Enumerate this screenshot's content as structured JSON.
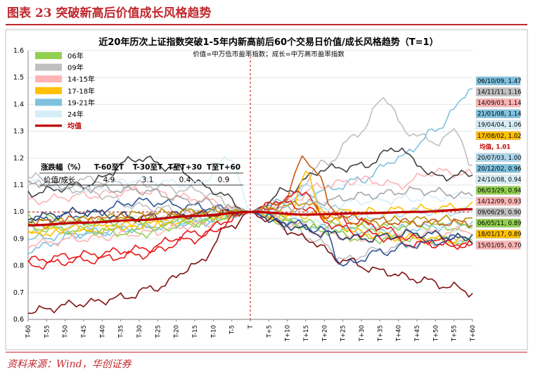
{
  "figure": {
    "title": "图表 23    突破新高后价值成长风格趋势",
    "source": "资料来源：Wind，华创证券"
  },
  "colors": {
    "brand_red": "#c0282d",
    "mean": "#c00000",
    "s06": "#92d050",
    "s09": "#bfbfbf",
    "s1415": "#ffb3b3",
    "s1718": "#ffc000",
    "s1921": "#7ec2e0",
    "s24": "#d6eef8"
  },
  "chart_data": {
    "type": "line",
    "title": "近20年历次上证指数突破1-5年内新高前后60个交易日价值/成长风格趋势（T=1）",
    "subtitle": "价值=中万低市盈率指数；成长=中万高市盈率指数",
    "xlabel": "",
    "ylabel": "",
    "x_range": [
      -60,
      60
    ],
    "ylim": [
      0.6,
      1.6
    ],
    "yticks": [
      "0.6",
      "0.7",
      "0.8",
      "0.9",
      "1.0",
      "1.1",
      "1.2",
      "1.3",
      "1.4",
      "1.5",
      "1.6"
    ],
    "xticks": [
      "T-60",
      "T-55",
      "T-50",
      "T-45",
      "T-40",
      "T-35",
      "T-30",
      "T-25",
      "T-20",
      "T-15",
      "T-10",
      "T-5",
      "T",
      "T+5",
      "T+10",
      "T+15",
      "T+20",
      "T+25",
      "T+30",
      "T+35",
      "T+40",
      "T+45",
      "T+50",
      "T+55",
      "T+60"
    ],
    "reference_line": 1.0,
    "legend": [
      {
        "label": "06年",
        "color": "#92d050"
      },
      {
        "label": "09年",
        "color": "#bfbfbf"
      },
      {
        "label": "14-15年",
        "color": "#ffb3b3"
      },
      {
        "label": "17-18年",
        "color": "#ffc000"
      },
      {
        "label": "19-21年",
        "color": "#7ec2e0"
      },
      {
        "label": "24年",
        "color": "#d6eef8"
      },
      {
        "label": "均值",
        "color": "#c00000"
      }
    ],
    "table": {
      "header": [
        "涨跌幅（%）",
        "T-60至T",
        "T-30至T",
        "T至T+30",
        "T至T+60"
      ],
      "row_label": "价值/成长",
      "values": [
        "4.9",
        "3.1",
        "0.4",
        "0.9"
      ]
    },
    "series": [
      {
        "name": "06/10/09",
        "end_label": "06/10/09, 1.47",
        "color": "#7ec2e0",
        "anchors": [
          [
            -60,
            0.86
          ],
          [
            -45,
            0.92
          ],
          [
            -30,
            0.94
          ],
          [
            -15,
            0.97
          ],
          [
            0,
            1.0
          ],
          [
            10,
            1.04
          ],
          [
            20,
            1.08
          ],
          [
            30,
            1.12
          ],
          [
            40,
            1.2
          ],
          [
            50,
            1.3
          ],
          [
            55,
            1.38
          ],
          [
            60,
            1.47
          ]
        ]
      },
      {
        "name": "14/11/11",
        "end_label": "14/11/11, 1.16",
        "color": "#bfbfbf",
        "anchors": [
          [
            -60,
            1.1
          ],
          [
            -45,
            1.12
          ],
          [
            -30,
            1.1
          ],
          [
            -15,
            1.08
          ],
          [
            0,
            1.0
          ],
          [
            10,
            1.05
          ],
          [
            20,
            1.18
          ],
          [
            30,
            1.3
          ],
          [
            36,
            1.43
          ],
          [
            42,
            1.3
          ],
          [
            50,
            1.26
          ],
          [
            56,
            1.3
          ],
          [
            60,
            1.16
          ]
        ]
      },
      {
        "name": "14/09/03",
        "end_label": "14/09/03, 1.14",
        "color": "#ffb3b3",
        "anchors": [
          [
            -60,
            1.04
          ],
          [
            -45,
            1.06
          ],
          [
            -30,
            1.08
          ],
          [
            -15,
            1.05
          ],
          [
            0,
            1.0
          ],
          [
            10,
            1.04
          ],
          [
            20,
            1.1
          ],
          [
            30,
            1.12
          ],
          [
            40,
            1.1
          ],
          [
            50,
            1.15
          ],
          [
            60,
            1.14
          ]
        ]
      },
      {
        "name": "21/01/08",
        "end_label": "21/01/08, 1.14",
        "color": "#404040",
        "anchors": [
          [
            -60,
            1.07
          ],
          [
            -45,
            1.1
          ],
          [
            -30,
            1.2
          ],
          [
            -20,
            1.16
          ],
          [
            -10,
            1.08
          ],
          [
            0,
            1.0
          ],
          [
            10,
            1.08
          ],
          [
            20,
            1.16
          ],
          [
            30,
            1.17
          ],
          [
            40,
            1.24
          ],
          [
            45,
            1.18
          ],
          [
            50,
            1.13
          ],
          [
            60,
            1.14
          ]
        ]
      },
      {
        "name": "19/04/04",
        "end_label": "19/04/04, 1.06",
        "color": "#d6eef8",
        "anchors": [
          [
            -60,
            1.12
          ],
          [
            -45,
            1.08
          ],
          [
            -30,
            1.12
          ],
          [
            -15,
            1.1
          ],
          [
            -5,
            1.2
          ],
          [
            0,
            1.0
          ],
          [
            10,
            1.0
          ],
          [
            20,
            1.02
          ],
          [
            30,
            1.04
          ],
          [
            45,
            1.05
          ],
          [
            60,
            1.06
          ]
        ]
      },
      {
        "name": "17/08/02",
        "end_label": "17/08/02, 1.02",
        "color": "#ffc000",
        "anchors": [
          [
            -60,
            0.92
          ],
          [
            -45,
            0.93
          ],
          [
            -30,
            0.95
          ],
          [
            -15,
            0.97
          ],
          [
            0,
            1.0
          ],
          [
            10,
            0.98
          ],
          [
            20,
            1.0
          ],
          [
            30,
            1.0
          ],
          [
            45,
            1.01
          ],
          [
            60,
            1.02
          ]
        ]
      },
      {
        "name": "20/07/03",
        "end_label": "20/07/03, 1.00",
        "color": "#b0d8ee",
        "anchors": [
          [
            -60,
            0.94
          ],
          [
            -45,
            0.95
          ],
          [
            -30,
            0.96
          ],
          [
            -15,
            0.98
          ],
          [
            0,
            1.0
          ],
          [
            10,
            1.03
          ],
          [
            15,
            1.1
          ],
          [
            20,
            1.02
          ],
          [
            30,
            0.98
          ],
          [
            45,
            1.0
          ],
          [
            60,
            1.0
          ]
        ]
      },
      {
        "name": "均值",
        "end_label": "均值, 1.01",
        "color": "#c00000",
        "anchors": [
          [
            -60,
            0.95
          ],
          [
            -45,
            0.96
          ],
          [
            -30,
            0.97
          ],
          [
            -15,
            0.985
          ],
          [
            0,
            1.0
          ],
          [
            15,
            0.99
          ],
          [
            30,
            0.995
          ],
          [
            45,
            1.0
          ],
          [
            60,
            1.01
          ]
        ]
      },
      {
        "name": "20/12/02",
        "end_label": "20/12/02, 0.96",
        "color": "#7ec2e0",
        "anchors": [
          [
            -60,
            0.9
          ],
          [
            -45,
            0.92
          ],
          [
            -30,
            0.94
          ],
          [
            -15,
            0.96
          ],
          [
            0,
            1.0
          ],
          [
            10,
            0.97
          ],
          [
            20,
            0.94
          ],
          [
            30,
            0.93
          ],
          [
            45,
            0.94
          ],
          [
            60,
            0.96
          ]
        ]
      },
      {
        "name": "24/10/08",
        "end_label": "24/10/08, 0.94",
        "color": "#d6eef8",
        "anchors": [
          [
            -60,
            0.96
          ],
          [
            -45,
            0.95
          ],
          [
            -30,
            0.97
          ],
          [
            -15,
            0.98
          ],
          [
            0,
            1.0
          ],
          [
            10,
            0.98
          ],
          [
            20,
            0.95
          ],
          [
            30,
            0.94
          ],
          [
            45,
            0.93
          ],
          [
            60,
            0.94
          ]
        ]
      },
      {
        "name": "06/03/29",
        "end_label": "06/03/29, 0.94",
        "color": "#92d050",
        "anchors": [
          [
            -60,
            0.98
          ],
          [
            -45,
            0.96
          ],
          [
            -30,
            0.97
          ],
          [
            -15,
            0.96
          ],
          [
            0,
            1.0
          ],
          [
            10,
            0.97
          ],
          [
            20,
            0.95
          ],
          [
            30,
            0.94
          ],
          [
            45,
            0.95
          ],
          [
            60,
            0.94
          ]
        ]
      },
      {
        "name": "14/12/09",
        "end_label": "14/12/09, 0.93",
        "color": "#ffb3b3",
        "anchors": [
          [
            -60,
            0.88
          ],
          [
            -45,
            0.9
          ],
          [
            -30,
            0.92
          ],
          [
            -15,
            0.95
          ],
          [
            0,
            1.0
          ],
          [
            10,
            0.96
          ],
          [
            20,
            0.92
          ],
          [
            30,
            0.9
          ],
          [
            45,
            0.92
          ],
          [
            60,
            0.93
          ]
        ]
      },
      {
        "name": "09/06/29",
        "end_label": "09/06/29, 0.90",
        "color": "#bfbfbf",
        "anchors": [
          [
            -60,
            1.13
          ],
          [
            -45,
            1.08
          ],
          [
            -30,
            1.02
          ],
          [
            -15,
            1.0
          ],
          [
            0,
            1.0
          ],
          [
            10,
            0.95
          ],
          [
            20,
            0.88
          ],
          [
            25,
            0.82
          ],
          [
            35,
            0.86
          ],
          [
            45,
            0.88
          ],
          [
            60,
            0.9
          ]
        ]
      },
      {
        "name": "06/05/11",
        "end_label": "06/05/11, 0.89",
        "color": "#92d050",
        "anchors": [
          [
            -60,
            0.94
          ],
          [
            -45,
            0.93
          ],
          [
            -30,
            0.92
          ],
          [
            -15,
            0.96
          ],
          [
            0,
            1.0
          ],
          [
            10,
            0.96
          ],
          [
            20,
            0.93
          ],
          [
            30,
            0.9
          ],
          [
            45,
            0.9
          ],
          [
            60,
            0.89
          ]
        ]
      },
      {
        "name": "18/01/17",
        "end_label": "18/01/17, 0.89",
        "color": "#ffc000",
        "anchors": [
          [
            -60,
            0.93
          ],
          [
            -45,
            0.94
          ],
          [
            -30,
            0.95
          ],
          [
            -15,
            0.98
          ],
          [
            0,
            1.0
          ],
          [
            10,
            0.98
          ],
          [
            15,
            1.14
          ],
          [
            20,
            0.98
          ],
          [
            30,
            0.92
          ],
          [
            45,
            0.9
          ],
          [
            60,
            0.89
          ]
        ]
      },
      {
        "name": "15/01/05",
        "end_label": "15/01/05, 0.70",
        "color": "#7f1010",
        "anchors": [
          [
            -60,
            0.63
          ],
          [
            -45,
            0.66
          ],
          [
            -35,
            0.68
          ],
          [
            -25,
            0.72
          ],
          [
            -15,
            0.8
          ],
          [
            -5,
            0.95
          ],
          [
            0,
            1.0
          ],
          [
            5,
            0.97
          ],
          [
            15,
            0.9
          ],
          [
            25,
            0.82
          ],
          [
            35,
            0.78
          ],
          [
            45,
            0.75
          ],
          [
            55,
            0.72
          ],
          [
            60,
            0.7
          ]
        ]
      },
      {
        "name": "red-a",
        "end_label": "",
        "color": "#e8191b",
        "anchors": [
          [
            -60,
            0.82
          ],
          [
            -45,
            0.84
          ],
          [
            -30,
            0.86
          ],
          [
            -15,
            0.92
          ],
          [
            0,
            1.0
          ],
          [
            10,
            1.05
          ],
          [
            15,
            1.08
          ],
          [
            20,
            0.96
          ],
          [
            30,
            0.92
          ],
          [
            45,
            0.88
          ],
          [
            60,
            0.88
          ]
        ]
      },
      {
        "name": "red-b",
        "end_label": "",
        "color": "#e8191b",
        "anchors": [
          [
            -60,
            0.8
          ],
          [
            -45,
            0.82
          ],
          [
            -30,
            0.84
          ],
          [
            -15,
            0.9
          ],
          [
            0,
            1.0
          ],
          [
            10,
            1.03
          ],
          [
            20,
            0.99
          ],
          [
            30,
            0.96
          ],
          [
            45,
            0.9
          ],
          [
            60,
            0.87
          ]
        ]
      },
      {
        "name": "navy-a",
        "end_label": "",
        "color": "#1f3a68",
        "anchors": [
          [
            -60,
            0.98
          ],
          [
            -45,
            1.0
          ],
          [
            -30,
            0.98
          ],
          [
            -15,
            0.99
          ],
          [
            0,
            1.0
          ],
          [
            10,
            0.95
          ],
          [
            20,
            0.92
          ],
          [
            30,
            0.9
          ],
          [
            45,
            0.92
          ],
          [
            60,
            0.9
          ]
        ]
      },
      {
        "name": "navy-b",
        "end_label": "",
        "color": "#2f5597",
        "anchors": [
          [
            -60,
            0.97
          ],
          [
            -45,
            0.99
          ],
          [
            -30,
            1.04
          ],
          [
            -15,
            1.02
          ],
          [
            0,
            1.0
          ],
          [
            10,
            0.96
          ],
          [
            20,
            0.93
          ],
          [
            25,
            0.8
          ],
          [
            35,
            0.85
          ],
          [
            45,
            0.88
          ],
          [
            60,
            0.91
          ]
        ]
      },
      {
        "name": "gold-a",
        "end_label": "",
        "color": "#bf8f00",
        "anchors": [
          [
            -60,
            0.95
          ],
          [
            -45,
            0.97
          ],
          [
            -30,
            0.99
          ],
          [
            -15,
            1.0
          ],
          [
            0,
            1.0
          ],
          [
            10,
            1.02
          ],
          [
            15,
            1.04
          ],
          [
            20,
            0.98
          ],
          [
            30,
            0.96
          ],
          [
            45,
            0.97
          ],
          [
            60,
            0.97
          ]
        ]
      },
      {
        "name": "gray-b",
        "end_label": "",
        "color": "#a6a6a6",
        "anchors": [
          [
            -60,
            1.11
          ],
          [
            -45,
            1.09
          ],
          [
            -30,
            1.08
          ],
          [
            -15,
            1.04
          ],
          [
            0,
            1.0
          ],
          [
            10,
            1.01
          ],
          [
            20,
            1.04
          ],
          [
            30,
            1.06
          ],
          [
            45,
            1.08
          ],
          [
            60,
            1.06
          ]
        ]
      },
      {
        "name": "orange-a",
        "end_label": "",
        "color": "#c55a11",
        "anchors": [
          [
            -60,
            0.96
          ],
          [
            -45,
            0.97
          ],
          [
            -30,
            0.98
          ],
          [
            -15,
            0.99
          ],
          [
            0,
            1.0
          ],
          [
            8,
            1.02
          ],
          [
            14,
            1.19
          ],
          [
            18,
            1.16
          ],
          [
            22,
            1.0
          ],
          [
            30,
            0.97
          ],
          [
            45,
            0.96
          ],
          [
            60,
            0.96
          ]
        ]
      }
    ]
  }
}
